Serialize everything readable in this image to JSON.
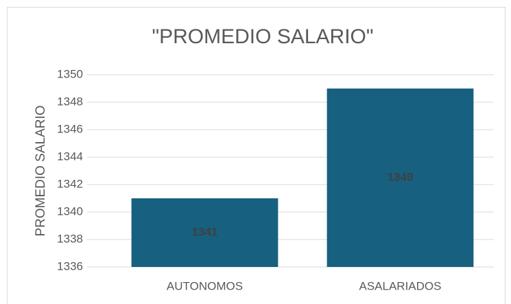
{
  "chart_data": {
    "type": "bar",
    "title": "\"PROMEDIO SALARIO\"",
    "y_label": "PROMEDIO SALARIO",
    "categories": [
      "AUTONOMOS",
      "ASALARIADOS"
    ],
    "values": [
      1341,
      1349
    ],
    "color": "#17607f",
    "ylim": [
      1336,
      1350
    ],
    "yticks": [
      1336,
      1338,
      1340,
      1342,
      1344,
      1346,
      1348,
      1350
    ],
    "grid": true,
    "data_labels": true
  }
}
